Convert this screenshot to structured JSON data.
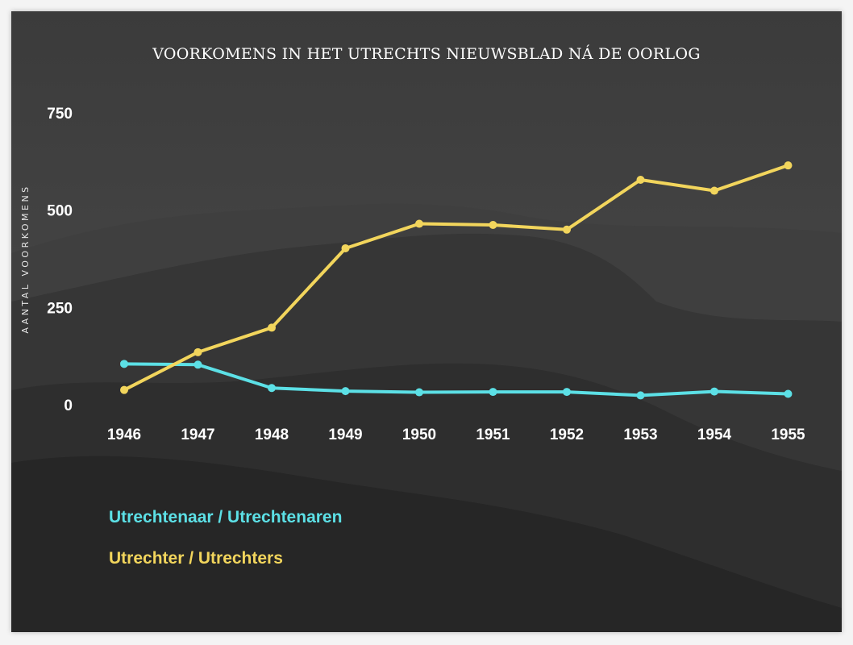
{
  "colors": {
    "series_0": "#5ce0e6",
    "series_1": "#f2d55c",
    "text": "#ffffff"
  },
  "chart_data": {
    "type": "line",
    "title": "VOORKOMENS IN HET UTRECHTS NIEUWSBLAD NÁ DE OORLOG",
    "xlabel": "",
    "ylabel": "AANTAL VOORKOMENS",
    "x": [
      "1946",
      "1947",
      "1948",
      "1949",
      "1950",
      "1951",
      "1952",
      "1953",
      "1954",
      "1955"
    ],
    "yticks": [
      0,
      250,
      500,
      750
    ],
    "ylim": [
      0,
      750
    ],
    "grid": false,
    "legend_placement": "bottom-left",
    "series": [
      {
        "name": "Utrechtenaar / Utrechtenaren",
        "color": "#5ce0e6",
        "values": [
          105,
          103,
          43,
          35,
          32,
          33,
          33,
          24,
          34,
          28
        ]
      },
      {
        "name": "Utrechter / Utrechters",
        "color": "#f2d55c",
        "values": [
          38,
          135,
          198,
          402,
          465,
          462,
          450,
          578,
          550,
          615
        ]
      }
    ]
  }
}
